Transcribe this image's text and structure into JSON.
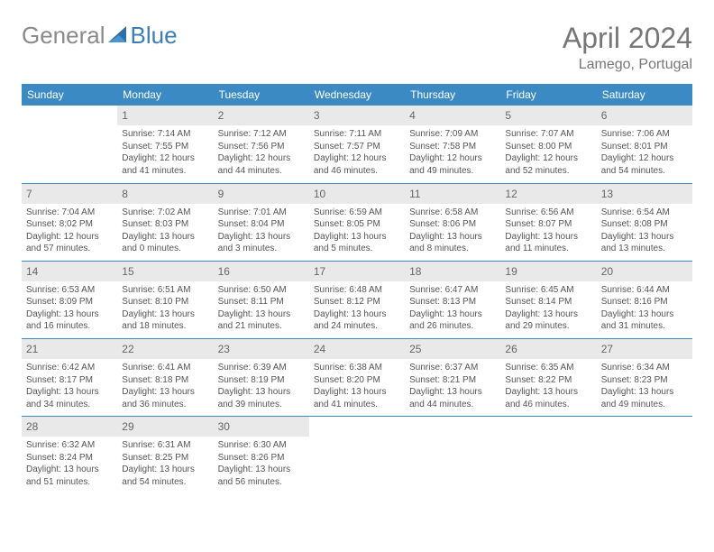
{
  "logo": {
    "word1": "General",
    "word2": "Blue"
  },
  "title": "April 2024",
  "location": "Lamego, Portugal",
  "header_bg": "#3b8ac4",
  "header_fg": "#ffffff",
  "daynum_bg": "#e9e9e9",
  "rule_color": "#3b8ac4",
  "text_color": "#555555",
  "dayHeaders": [
    "Sunday",
    "Monday",
    "Tuesday",
    "Wednesday",
    "Thursday",
    "Friday",
    "Saturday"
  ],
  "weeks": [
    [
      null,
      {
        "n": "1",
        "sr": "7:14 AM",
        "ss": "7:55 PM",
        "dl": "12 hours and 41 minutes."
      },
      {
        "n": "2",
        "sr": "7:12 AM",
        "ss": "7:56 PM",
        "dl": "12 hours and 44 minutes."
      },
      {
        "n": "3",
        "sr": "7:11 AM",
        "ss": "7:57 PM",
        "dl": "12 hours and 46 minutes."
      },
      {
        "n": "4",
        "sr": "7:09 AM",
        "ss": "7:58 PM",
        "dl": "12 hours and 49 minutes."
      },
      {
        "n": "5",
        "sr": "7:07 AM",
        "ss": "8:00 PM",
        "dl": "12 hours and 52 minutes."
      },
      {
        "n": "6",
        "sr": "7:06 AM",
        "ss": "8:01 PM",
        "dl": "12 hours and 54 minutes."
      }
    ],
    [
      {
        "n": "7",
        "sr": "7:04 AM",
        "ss": "8:02 PM",
        "dl": "12 hours and 57 minutes."
      },
      {
        "n": "8",
        "sr": "7:02 AM",
        "ss": "8:03 PM",
        "dl": "13 hours and 0 minutes."
      },
      {
        "n": "9",
        "sr": "7:01 AM",
        "ss": "8:04 PM",
        "dl": "13 hours and 3 minutes."
      },
      {
        "n": "10",
        "sr": "6:59 AM",
        "ss": "8:05 PM",
        "dl": "13 hours and 5 minutes."
      },
      {
        "n": "11",
        "sr": "6:58 AM",
        "ss": "8:06 PM",
        "dl": "13 hours and 8 minutes."
      },
      {
        "n": "12",
        "sr": "6:56 AM",
        "ss": "8:07 PM",
        "dl": "13 hours and 11 minutes."
      },
      {
        "n": "13",
        "sr": "6:54 AM",
        "ss": "8:08 PM",
        "dl": "13 hours and 13 minutes."
      }
    ],
    [
      {
        "n": "14",
        "sr": "6:53 AM",
        "ss": "8:09 PM",
        "dl": "13 hours and 16 minutes."
      },
      {
        "n": "15",
        "sr": "6:51 AM",
        "ss": "8:10 PM",
        "dl": "13 hours and 18 minutes."
      },
      {
        "n": "16",
        "sr": "6:50 AM",
        "ss": "8:11 PM",
        "dl": "13 hours and 21 minutes."
      },
      {
        "n": "17",
        "sr": "6:48 AM",
        "ss": "8:12 PM",
        "dl": "13 hours and 24 minutes."
      },
      {
        "n": "18",
        "sr": "6:47 AM",
        "ss": "8:13 PM",
        "dl": "13 hours and 26 minutes."
      },
      {
        "n": "19",
        "sr": "6:45 AM",
        "ss": "8:14 PM",
        "dl": "13 hours and 29 minutes."
      },
      {
        "n": "20",
        "sr": "6:44 AM",
        "ss": "8:16 PM",
        "dl": "13 hours and 31 minutes."
      }
    ],
    [
      {
        "n": "21",
        "sr": "6:42 AM",
        "ss": "8:17 PM",
        "dl": "13 hours and 34 minutes."
      },
      {
        "n": "22",
        "sr": "6:41 AM",
        "ss": "8:18 PM",
        "dl": "13 hours and 36 minutes."
      },
      {
        "n": "23",
        "sr": "6:39 AM",
        "ss": "8:19 PM",
        "dl": "13 hours and 39 minutes."
      },
      {
        "n": "24",
        "sr": "6:38 AM",
        "ss": "8:20 PM",
        "dl": "13 hours and 41 minutes."
      },
      {
        "n": "25",
        "sr": "6:37 AM",
        "ss": "8:21 PM",
        "dl": "13 hours and 44 minutes."
      },
      {
        "n": "26",
        "sr": "6:35 AM",
        "ss": "8:22 PM",
        "dl": "13 hours and 46 minutes."
      },
      {
        "n": "27",
        "sr": "6:34 AM",
        "ss": "8:23 PM",
        "dl": "13 hours and 49 minutes."
      }
    ],
    [
      {
        "n": "28",
        "sr": "6:32 AM",
        "ss": "8:24 PM",
        "dl": "13 hours and 51 minutes."
      },
      {
        "n": "29",
        "sr": "6:31 AM",
        "ss": "8:25 PM",
        "dl": "13 hours and 54 minutes."
      },
      {
        "n": "30",
        "sr": "6:30 AM",
        "ss": "8:26 PM",
        "dl": "13 hours and 56 minutes."
      },
      null,
      null,
      null,
      null
    ]
  ],
  "labels": {
    "sunrise": "Sunrise: ",
    "sunset": "Sunset: ",
    "daylight": "Daylight: "
  }
}
